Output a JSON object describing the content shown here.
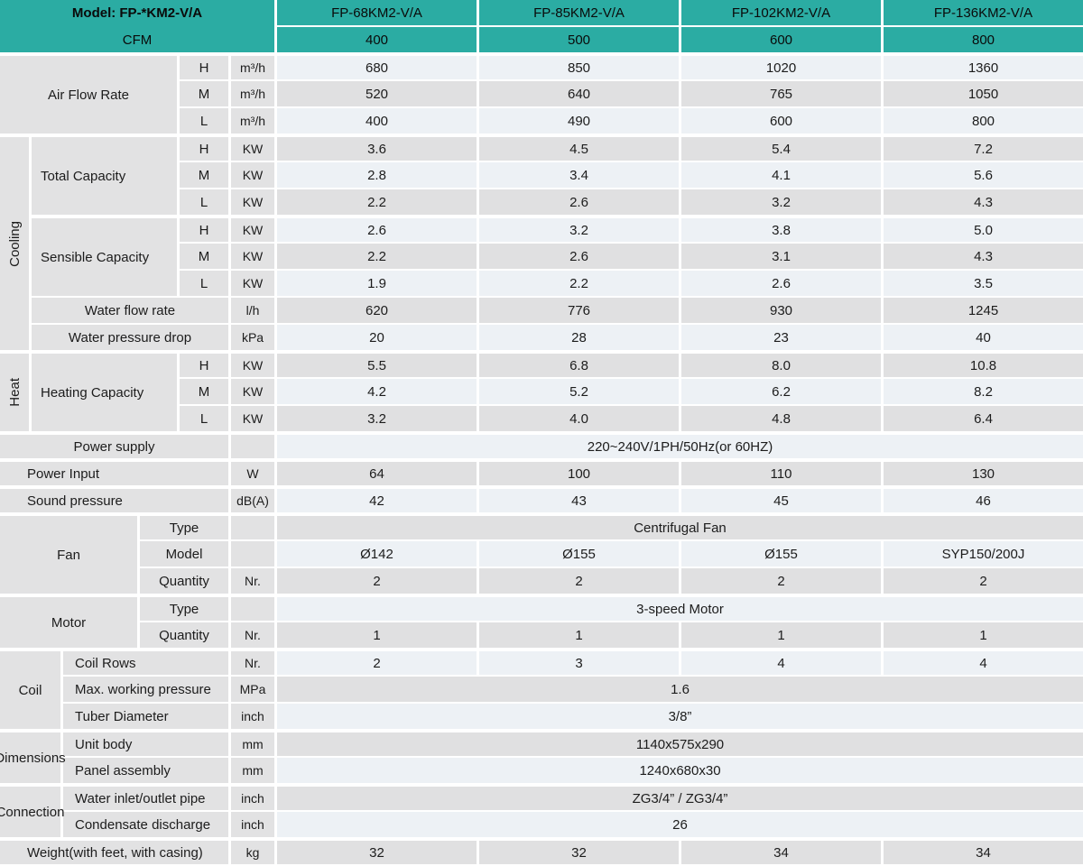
{
  "title": {
    "model_label": "Model: FP-*KM2-V/A",
    "cfm_label": "CFM"
  },
  "models": [
    "FP-68KM2-V/A",
    "FP-85KM2-V/A",
    "FP-102KM2-V/A",
    "FP-136KM2-V/A"
  ],
  "cfm_values": [
    "400",
    "500",
    "600",
    "800"
  ],
  "colors": {
    "teal": "#2baca3",
    "row_light": "#edf1f5",
    "row_gray": "#e0e0e1",
    "label_gray": "#e2e2e3",
    "text": "#1c1c1c"
  },
  "sections": [
    {
      "kind": "hml",
      "label": "Air Flow Rate",
      "rows": [
        {
          "level": "H",
          "unit": "m³/h",
          "values": [
            "680",
            "850",
            "1020",
            "1360"
          ]
        },
        {
          "level": "M",
          "unit": "m³/h",
          "values": [
            "520",
            "640",
            "765",
            "1050"
          ]
        },
        {
          "level": "L",
          "unit": "m³/h",
          "values": [
            "400",
            "490",
            "600",
            "800"
          ]
        }
      ]
    },
    {
      "kind": "group",
      "vertical_label": "Cooling",
      "blocks": [
        {
          "kind": "hml",
          "label": "Total Capacity",
          "rows": [
            {
              "level": "H",
              "unit": "KW",
              "values": [
                "3.6",
                "4.5",
                "5.4",
                "7.2"
              ]
            },
            {
              "level": "M",
              "unit": "KW",
              "values": [
                "2.8",
                "3.4",
                "4.1",
                "5.6"
              ]
            },
            {
              "level": "L",
              "unit": "KW",
              "values": [
                "2.2",
                "2.6",
                "3.2",
                "4.3"
              ]
            }
          ]
        },
        {
          "kind": "hml",
          "label": "Sensible Capacity",
          "rows": [
            {
              "level": "H",
              "unit": "KW",
              "values": [
                "2.6",
                "3.2",
                "3.8",
                "5.0"
              ]
            },
            {
              "level": "M",
              "unit": "KW",
              "values": [
                "2.2",
                "2.6",
                "3.1",
                "4.3"
              ]
            },
            {
              "level": "L",
              "unit": "KW",
              "values": [
                "1.9",
                "2.2",
                "2.6",
                "3.5"
              ]
            }
          ]
        },
        {
          "kind": "simple",
          "label": "Water flow rate",
          "unit": "l/h",
          "values": [
            "620",
            "776",
            "930",
            "1245"
          ]
        },
        {
          "kind": "simple",
          "label": "Water pressure drop",
          "unit": "kPa",
          "values": [
            "20",
            "28",
            "23",
            "40"
          ]
        }
      ]
    },
    {
      "kind": "group",
      "vertical_label": "Heat",
      "blocks": [
        {
          "kind": "hml",
          "label": "Heating Capacity",
          "rows": [
            {
              "level": "H",
              "unit": "KW",
              "values": [
                "5.5",
                "6.8",
                "8.0",
                "10.8"
              ]
            },
            {
              "level": "M",
              "unit": "KW",
              "values": [
                "4.2",
                "5.2",
                "6.2",
                "8.2"
              ]
            },
            {
              "level": "L",
              "unit": "KW",
              "values": [
                "3.2",
                "4.0",
                "4.8",
                "6.4"
              ]
            }
          ]
        }
      ]
    },
    {
      "kind": "fullrow",
      "label": "Power supply",
      "label_align": "center",
      "unit": "",
      "merged": "220~240V/1PH/50Hz(or 60HZ)"
    },
    {
      "kind": "fullrow",
      "label": "Power Input",
      "label_align": "left",
      "unit": "W",
      "values": [
        "64",
        "100",
        "110",
        "130"
      ]
    },
    {
      "kind": "fullrow",
      "label": "Sound pressure",
      "label_align": "left",
      "unit": "dB(A)",
      "values": [
        "42",
        "43",
        "45",
        "46"
      ]
    },
    {
      "kind": "sub",
      "label": "Fan",
      "split": "mid",
      "rows": [
        {
          "sublabel": "Type",
          "unit": "",
          "merged": "Centrifugal Fan"
        },
        {
          "sublabel": "Model",
          "unit": "",
          "values": [
            "Ø142",
            "Ø155",
            "Ø155",
            "SYP150/200J"
          ]
        },
        {
          "sublabel": "Quantity",
          "unit": "Nr.",
          "values": [
            "2",
            "2",
            "2",
            "2"
          ]
        }
      ]
    },
    {
      "kind": "sub",
      "label": "Motor",
      "split": "mid",
      "rows": [
        {
          "sublabel": "Type",
          "unit": "",
          "merged": "3-speed Motor"
        },
        {
          "sublabel": "Quantity",
          "unit": "Nr.",
          "values": [
            "1",
            "1",
            "1",
            "1"
          ]
        }
      ]
    },
    {
      "kind": "sub",
      "label": "Coil",
      "split": "narrow",
      "rows": [
        {
          "sublabel": "Coil Rows",
          "unit": "Nr.",
          "values": [
            "2",
            "3",
            "4",
            "4"
          ]
        },
        {
          "sublabel": "Max. working pressure",
          "unit": "MPa",
          "merged": "1.6"
        },
        {
          "sublabel": "Tuber Diameter",
          "unit": "inch",
          "merged": "3/8”"
        }
      ]
    },
    {
      "kind": "sub",
      "label": "Dimensions",
      "split": "narrow",
      "rows": [
        {
          "sublabel": "Unit body",
          "unit": "mm",
          "merged": "1140x575x290"
        },
        {
          "sublabel": "Panel assembly",
          "unit": "mm",
          "merged": "1240x680x30"
        }
      ]
    },
    {
      "kind": "sub",
      "label": "Connection",
      "split": "narrow",
      "rows": [
        {
          "sublabel": "Water inlet/outlet pipe",
          "unit": "inch",
          "merged": "ZG3/4” / ZG3/4”"
        },
        {
          "sublabel": "Condensate discharge",
          "unit": "inch",
          "merged": "26"
        }
      ]
    },
    {
      "kind": "fullrow",
      "label": "Weight(with feet, with casing)",
      "label_align": "left",
      "unit": "kg",
      "values": [
        "32",
        "32",
        "34",
        "34"
      ]
    }
  ]
}
